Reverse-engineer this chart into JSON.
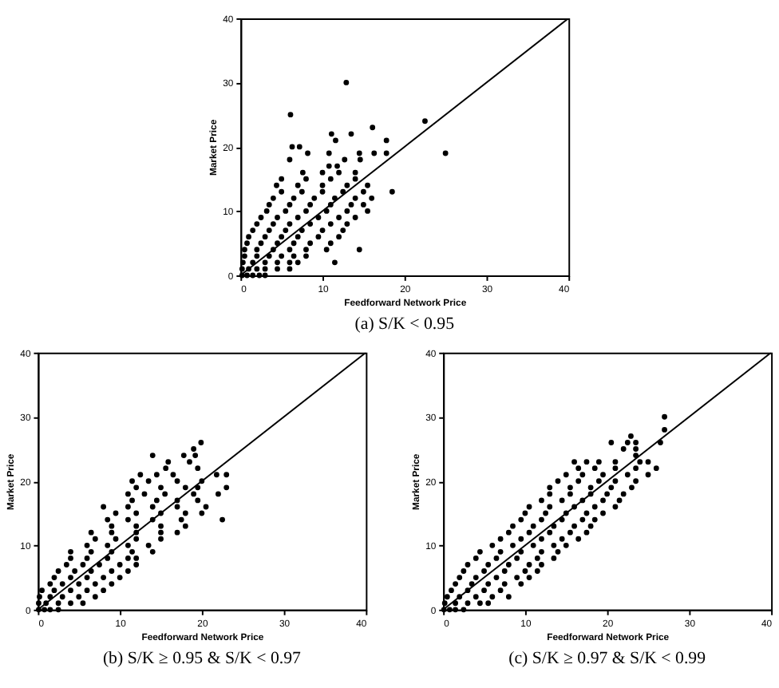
{
  "chart_data": [
    {
      "type": "scatter",
      "title": "(a)  S/K < 0.95",
      "xlabel": "Feedforward Network Price",
      "ylabel": "Market Price",
      "xlim": [
        0,
        40
      ],
      "ylim": [
        0,
        40
      ],
      "xticks": [
        0,
        10,
        20,
        30,
        40
      ],
      "yticks": [
        0,
        10,
        20,
        30,
        40
      ],
      "grid": false,
      "marker": "circle",
      "series": [
        {
          "type": "scatter",
          "color": "#000000",
          "x": [
            0.2,
            0.8,
            1.5,
            2.3,
            3.0,
            0.2,
            1.0,
            2.0,
            3.0,
            4.5,
            6.0,
            0.3,
            1.5,
            3.0,
            4.5,
            6.0,
            7.0,
            11.5,
            0.5,
            2.0,
            3.5,
            5.0,
            6.5,
            8.0,
            0.5,
            2.0,
            4.0,
            6.0,
            8.0,
            10.5,
            14.5,
            0.8,
            2.5,
            4.5,
            6.5,
            8.5,
            11.0,
            1.0,
            3.0,
            5.0,
            7.0,
            9.5,
            12.0,
            1.5,
            3.5,
            5.5,
            7.5,
            10.0,
            12.5,
            2.0,
            4.0,
            6.0,
            8.5,
            11.0,
            13.0,
            2.5,
            4.5,
            7.0,
            9.5,
            12.0,
            14.0,
            3.2,
            5.5,
            8.0,
            10.5,
            13.0,
            15.5,
            3.5,
            6.0,
            8.5,
            11.0,
            13.5,
            15.0,
            4.0,
            6.5,
            9.0,
            11.5,
            14.0,
            16.0,
            5.0,
            7.5,
            10.0,
            12.5,
            15.0,
            18.5,
            4.4,
            7.0,
            10.0,
            13.0,
            15.5,
            5.0,
            8.0,
            11.0,
            14.0,
            7.6,
            10.0,
            12.0,
            14.0,
            10.8,
            11.8,
            6.0,
            12.7,
            14.6,
            8.2,
            10.8,
            14.5,
            16.3,
            17.8,
            25.0,
            6.3,
            7.2,
            11.6,
            17.8,
            11.1,
            13.5,
            16.1,
            22.5,
            6.1,
            12.9
          ],
          "values": [
            0,
            0,
            0,
            0,
            0,
            1,
            1,
            1,
            1,
            1,
            1,
            2,
            2,
            2,
            2,
            2,
            2,
            2,
            3,
            3,
            3,
            3,
            3,
            3,
            4,
            4,
            4,
            4,
            4,
            4,
            4,
            5,
            5,
            5,
            5,
            5,
            5,
            6,
            6,
            6,
            6,
            6,
            6,
            7,
            7,
            7,
            7,
            7,
            7,
            8,
            8,
            8,
            8,
            8,
            8,
            9,
            9,
            9,
            9,
            9,
            9,
            10,
            10,
            10,
            10,
            10,
            10,
            11,
            11,
            11,
            11,
            11,
            11,
            12,
            12,
            12,
            12,
            12,
            12,
            13,
            13,
            13,
            13,
            13,
            13,
            14,
            14,
            14,
            14,
            14,
            15,
            15,
            15,
            15,
            16,
            16,
            16,
            16,
            17,
            17,
            18,
            18,
            18,
            19,
            19,
            19,
            19,
            19,
            19,
            20,
            20,
            21,
            21,
            22,
            22,
            23,
            24,
            25,
            30
          ]
        },
        {
          "type": "line",
          "color": "#000000",
          "marker": "none",
          "x": [
            0,
            40
          ],
          "values": [
            0,
            40
          ]
        }
      ]
    },
    {
      "type": "scatter",
      "title": "(b)  S/K ≥ 0.95 & S/K < 0.97",
      "xlabel": "Feedforward Network Price",
      "ylabel": "Market Price",
      "xlim": [
        0,
        40
      ],
      "ylim": [
        0,
        40
      ],
      "xticks": [
        0,
        10,
        20,
        30,
        40
      ],
      "yticks": [
        0,
        10,
        20,
        30,
        40
      ],
      "grid": false,
      "marker": "circle",
      "series": [
        {
          "type": "scatter",
          "color": "#000000",
          "x": [
            0.1,
            0.8,
            1.5,
            2.5,
            0.1,
            1.0,
            2.5,
            4.0,
            5.5,
            0.2,
            1.5,
            3.0,
            5.0,
            7.0,
            0.5,
            2.0,
            4.0,
            6.0,
            8.0,
            1.5,
            3.0,
            5.0,
            7.0,
            9.0,
            2.0,
            4.0,
            6.0,
            8.0,
            10.0,
            2.5,
            4.5,
            6.5,
            9.0,
            11.0,
            3.5,
            5.5,
            7.5,
            10.0,
            12.0,
            4.0,
            6.0,
            8.5,
            11.0,
            12.0,
            4.0,
            6.5,
            9.0,
            11.5,
            14.0,
            6.0,
            8.5,
            11.0,
            13.5,
            7.0,
            9.5,
            12.0,
            15.0,
            6.5,
            9.0,
            12.0,
            15.0,
            17.0,
            9.0,
            12.0,
            15.0,
            18.0,
            8.5,
            11.0,
            14.0,
            17.5,
            22.5,
            9.5,
            12.0,
            15.0,
            18.0,
            20.0,
            8.0,
            11.0,
            14.0,
            17.0,
            20.5,
            11.5,
            14.5,
            17.0,
            19.5,
            11.0,
            13.0,
            15.5,
            19.0,
            22.0,
            12.0,
            15.0,
            18.0,
            19.5,
            23.0,
            11.5,
            13.5,
            17.0,
            20.0,
            12.5,
            14.5,
            16.5,
            21.8,
            23.0,
            15.6,
            19.5,
            15.9,
            18.5,
            14.0,
            17.8,
            19.2,
            19.0,
            19.9
          ],
          "values": [
            0,
            0,
            0,
            0,
            1,
            1,
            1,
            1,
            1,
            2,
            2,
            2,
            2,
            2,
            3,
            3,
            3,
            3,
            3,
            4,
            4,
            4,
            4,
            4,
            5,
            5,
            5,
            5,
            5,
            6,
            6,
            6,
            6,
            6,
            7,
            7,
            7,
            7,
            7,
            8,
            8,
            8,
            8,
            8,
            9,
            9,
            9,
            9,
            9,
            10,
            10,
            10,
            10,
            11,
            11,
            11,
            11,
            12,
            12,
            12,
            12,
            12,
            13,
            13,
            13,
            13,
            14,
            14,
            14,
            14,
            14,
            15,
            15,
            15,
            15,
            15,
            16,
            16,
            16,
            16,
            16,
            17,
            17,
            17,
            17,
            18,
            18,
            18,
            18,
            18,
            19,
            19,
            19,
            19,
            19,
            20,
            20,
            20,
            20,
            21,
            21,
            21,
            21,
            21,
            22,
            22,
            23,
            23,
            24,
            24,
            24,
            25,
            26
          ]
        },
        {
          "type": "line",
          "color": "#000000",
          "marker": "none",
          "x": [
            0,
            40
          ],
          "values": [
            0,
            40
          ]
        }
      ]
    },
    {
      "type": "scatter",
      "title": "(c)  S/K ≥ 0.97 & S/K < 0.99",
      "xlabel": "Feedforward Network Price",
      "ylabel": "Market Price",
      "xlim": [
        0,
        40
      ],
      "ylim": [
        0,
        40
      ],
      "xticks": [
        0,
        10,
        20,
        30,
        40
      ],
      "yticks": [
        0,
        10,
        20,
        30,
        40
      ],
      "grid": false,
      "marker": "circle",
      "series": [
        {
          "type": "scatter",
          "color": "#000000",
          "x": [
            0.1,
            0.8,
            1.5,
            2.5,
            0.2,
            1.5,
            3.0,
            4.5,
            5.5,
            0.5,
            2.0,
            4.0,
            6.0,
            8.0,
            1.0,
            3.0,
            5.0,
            7.0,
            1.5,
            3.5,
            5.5,
            7.5,
            9.5,
            2.0,
            4.0,
            6.5,
            9.0,
            10.5,
            2.5,
            5.0,
            7.5,
            10.0,
            11.5,
            3.0,
            5.5,
            8.0,
            10.5,
            12.0,
            4.0,
            6.5,
            9.0,
            11.5,
            13.5,
            4.5,
            7.0,
            9.5,
            12.0,
            14.0,
            6.0,
            8.5,
            11.0,
            13.5,
            15.0,
            7.0,
            9.5,
            12.0,
            14.5,
            16.5,
            8.0,
            10.5,
            13.0,
            15.5,
            17.5,
            8.5,
            11.0,
            13.5,
            16.0,
            18.0,
            9.5,
            12.0,
            14.5,
            17.0,
            18.5,
            10.0,
            12.5,
            15.0,
            17.5,
            19.5,
            10.5,
            13.0,
            16.0,
            18.5,
            21.0,
            12.0,
            14.5,
            17.0,
            19.5,
            21.5,
            13.0,
            15.5,
            18.0,
            20.0,
            22.0,
            13.0,
            15.5,
            18.0,
            20.5,
            23.0,
            14.0,
            16.5,
            19.0,
            21.0,
            23.5,
            15.0,
            17.0,
            19.5,
            22.5,
            25.0,
            16.5,
            18.5,
            21.0,
            23.5,
            26.0,
            16.0,
            17.5,
            19.0,
            21.0,
            24.0,
            25.0,
            23.5,
            22.0,
            23.5,
            20.5,
            22.5,
            23.5,
            26.5,
            22.9,
            27.0,
            27.0
          ],
          "values": [
            0,
            0,
            0,
            0,
            1,
            1,
            1,
            1,
            1,
            2,
            2,
            2,
            2,
            2,
            3,
            3,
            3,
            3,
            4,
            4,
            4,
            4,
            4,
            5,
            5,
            5,
            5,
            5,
            6,
            6,
            6,
            6,
            6,
            7,
            7,
            7,
            7,
            7,
            8,
            8,
            8,
            8,
            8,
            9,
            9,
            9,
            9,
            9,
            10,
            10,
            10,
            10,
            10,
            11,
            11,
            11,
            11,
            11,
            12,
            12,
            12,
            12,
            12,
            13,
            13,
            13,
            13,
            13,
            14,
            14,
            14,
            14,
            14,
            15,
            15,
            15,
            15,
            15,
            16,
            16,
            16,
            16,
            16,
            17,
            17,
            17,
            17,
            17,
            18,
            18,
            18,
            18,
            18,
            19,
            19,
            19,
            19,
            19,
            20,
            20,
            20,
            20,
            20,
            21,
            21,
            21,
            21,
            21,
            22,
            22,
            22,
            22,
            22,
            23,
            23,
            23,
            23,
            23,
            23,
            24,
            25,
            25,
            26,
            26,
            26,
            26,
            27,
            28,
            30
          ]
        },
        {
          "type": "line",
          "color": "#000000",
          "marker": "none",
          "x": [
            0,
            40
          ],
          "values": [
            0,
            40
          ]
        }
      ]
    }
  ]
}
